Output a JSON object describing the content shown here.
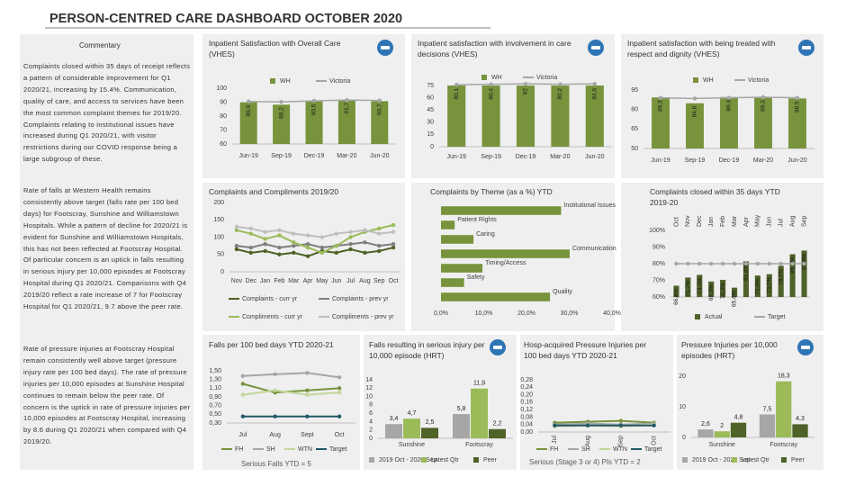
{
  "title": "PERSON-CENTRED CARE DASHBOARD OCTOBER 2020",
  "commentary": {
    "heading": "Commentary",
    "paragraphs": [
      "Complaints closed within 35 days of receipt reflects a pattern of considerable improvement for Q1 2020/21, increasing by 15.4%. Communication, quality of care, and access to services have been the most common complaint themes for 2019/20. Complaints relating to institutional issues have increased during Q1 2020/21, with visitor restrictions during our COVID response being a large subgroup of these.",
      "Rate of falls at Western Health remains consistently above target (falls rate per 100 bed days) for Footscray, Sunshine and Williamstown Hospitals. While a pattern of decline for 2020/21 is evident for Sunshine and Williamstown Hospitals, this has not been reflected at Footscray Hospital. Of particular concern is an uptick in falls resulting in serious injury per 10,000 episodes at Footscray Hospital during Q1 2020/21. Comparisons with Q4 2019/20 reflect a rate increase of 7 for Footscray Hospital for Q1 2020/21, 9.7 above the peer rate.",
      "Rate of pressure injuries at Footscray Hospital remain consistently well above target (pressure injury rate per 100 bed days). The rate of pressure injuries per 10,000 episodes at Sunshine Hospital continues to remain below the peer rate. Of concern is the uptick in rate of pressure injuries per 10,000 episodes at Footscray Hospital, increasing by 8.6 during Q1 2020/21 when compared with Q4 2019/20."
    ]
  },
  "chart_data": [
    {
      "type": "bar",
      "title": "Inpatient Satisfaction with Overall Care (VHES)",
      "categories": [
        "Jun-19",
        "Sep-19",
        "Dec-19",
        "Mar-20",
        "Jun-20"
      ],
      "series": [
        {
          "name": "WH",
          "type": "bar",
          "color": "#77933c",
          "values": [
            89.9,
            88.2,
            90.5,
            91.7,
            90.7
          ],
          "value_labels": [
            "89,9",
            "88,2",
            "90,5",
            "91,7",
            "90,7"
          ]
        },
        {
          "name": "Victoria",
          "type": "line",
          "color": "#a6a6a6",
          "values": [
            90.5,
            90.2,
            91,
            91.5,
            91.2
          ]
        }
      ],
      "ylim": [
        60,
        100
      ],
      "yticks": [
        60,
        70,
        80,
        90,
        100
      ],
      "grid": false,
      "legend": "top"
    },
    {
      "type": "bar",
      "title": "Inpatient satisfaction with involvement in care decisions (VHES)",
      "categories": [
        "Jun-19",
        "Sep-19",
        "Dec-19",
        "Mar-20",
        "Jun-20"
      ],
      "series": [
        {
          "name": "WH",
          "type": "bar",
          "color": "#77933c",
          "values": [
            80.1,
            80.4,
            82,
            80.2,
            84.6
          ],
          "value_labels": [
            "80,1",
            "80,4",
            "82",
            "80,2",
            "84,6"
          ]
        },
        {
          "name": "Victoria",
          "type": "line",
          "color": "#a6a6a6",
          "values": [
            76,
            76.5,
            77,
            76.5,
            77
          ]
        }
      ],
      "ylim": [
        0,
        75
      ],
      "yticks": [
        0,
        15,
        30,
        45,
        60,
        75
      ],
      "grid": false,
      "legend": "top"
    },
    {
      "type": "bar",
      "title": "Inpatient satisfaction with being treated with respect and dignity (VHES)",
      "categories": [
        "Jun-19",
        "Sep-19",
        "Dec-19",
        "Mar-20",
        "Jun-20"
      ],
      "series": [
        {
          "name": "WH",
          "type": "bar",
          "color": "#77933c",
          "values": [
            89.3,
            84.8,
            89.6,
            89.3,
            88.5
          ],
          "value_labels": [
            "89,3",
            "84,8",
            "89,6",
            "89,3",
            "88,5"
          ]
        },
        {
          "name": "Victoria",
          "type": "line",
          "color": "#a6a6a6",
          "values": [
            89,
            88.5,
            89,
            89.5,
            89
          ]
        }
      ],
      "ylim": [
        50,
        95
      ],
      "yticks": [
        50,
        65,
        80,
        95
      ],
      "grid": false,
      "legend": "top"
    },
    {
      "type": "line",
      "title": "Complaints and Compliments 2019/20",
      "categories": [
        "Nov",
        "Dec",
        "Jan",
        "Feb",
        "Mar",
        "Apr",
        "May",
        "Jun",
        "Jul",
        "Aug",
        "Sep",
        "Oct"
      ],
      "series": [
        {
          "name": "Complaints - curr yr",
          "color": "#4f6228",
          "values": [
            65,
            55,
            60,
            50,
            55,
            45,
            60,
            55,
            65,
            55,
            60,
            70
          ]
        },
        {
          "name": "Complaints - prev yr",
          "color": "#7f7f7f",
          "values": [
            75,
            70,
            80,
            70,
            75,
            80,
            70,
            75,
            80,
            85,
            75,
            80
          ]
        },
        {
          "name": "Compliments - curr yr",
          "color": "#9bbb59",
          "values": [
            120,
            110,
            95,
            105,
            85,
            70,
            55,
            75,
            100,
            115,
            125,
            135
          ]
        },
        {
          "name": "Compliments - prev yr",
          "color": "#bfbfbf",
          "values": [
            130,
            125,
            115,
            120,
            110,
            105,
            100,
            110,
            115,
            120,
            110,
            115
          ]
        }
      ],
      "ylim": [
        0,
        200
      ],
      "yticks": [
        0,
        50,
        100,
        150,
        200
      ],
      "grid": false,
      "legend": "bottom"
    },
    {
      "type": "hbar",
      "title": "Complaints by Theme (as a %) YTD",
      "categories": [
        "Institutional Issues",
        "Patient Rights",
        "Caring",
        "Communication",
        "Timing/Access",
        "Safety",
        "Quality"
      ],
      "values": [
        28.1,
        3.2,
        7.6,
        30.1,
        9.7,
        5.4,
        25.5
      ],
      "color": "#77933c",
      "xlim": [
        0,
        40
      ],
      "xticks": [
        {
          "value": 0,
          "label": "0,0%"
        },
        {
          "value": 10,
          "label": "10,0%"
        },
        {
          "value": 20,
          "label": "20,0%"
        },
        {
          "value": 30,
          "label": "30,0%"
        },
        {
          "value": 40,
          "label": "40,0%"
        }
      ]
    },
    {
      "type": "bar",
      "title": "Complaints closed within 35 days YTD 2019-20",
      "categories": [
        "Oct",
        "Nov",
        "Dec",
        "Jan",
        "Feb",
        "Mar",
        "Apr",
        "May",
        "Jun",
        "Jul",
        "Aug",
        "Sep"
      ],
      "series": [
        {
          "name": "Actual",
          "type": "bar",
          "color": "#4f6228",
          "values": [
            66.8,
            71.7,
            73.3,
            69.3,
            70.3,
            65.6,
            81.4,
            72.9,
            73.7,
            78.7,
            85.7,
            87.9
          ],
          "value_labels": [
            "66,8%",
            "71,7%",
            "73,3%",
            "69,3%",
            "70,3%",
            "65,6%",
            "81,4%",
            "72,9%",
            "73,7%",
            "78,7%",
            "85,7%",
            "87,9%"
          ]
        },
        {
          "name": "Target",
          "type": "line",
          "color": "#a6a6a6",
          "values": [
            80,
            80,
            80,
            80,
            80,
            80,
            80,
            80,
            80,
            80,
            80,
            80
          ]
        }
      ],
      "ylim": [
        60,
        100
      ],
      "yticks": [
        {
          "value": 60,
          "label": "60%"
        },
        {
          "value": 70,
          "label": "70%"
        },
        {
          "value": 80,
          "label": "80%"
        },
        {
          "value": 90,
          "label": "90%"
        },
        {
          "value": 100,
          "label": "100%"
        }
      ],
      "grid": false,
      "legend": "bottom"
    },
    {
      "type": "line",
      "title": "Falls per 100 bed days YTD 2020-21",
      "subtitle": "Serious Falls YTD = 5",
      "categories": [
        "Jul",
        "Aug",
        "Sept",
        "Oct"
      ],
      "series": [
        {
          "name": "FH",
          "color": "#77933c",
          "values": [
            1.2,
            1.0,
            1.05,
            1.1
          ]
        },
        {
          "name": "SH",
          "color": "#a6a6a6",
          "values": [
            1.38,
            1.42,
            1.45,
            1.35
          ]
        },
        {
          "name": "WTN",
          "color": "#c3d69b",
          "values": [
            0.95,
            1.05,
            0.95,
            1.0
          ]
        },
        {
          "name": "Target",
          "color": "#215968",
          "values": [
            0.45,
            0.45,
            0.45,
            0.45
          ]
        }
      ],
      "ylim": [
        0.3,
        1.5
      ],
      "yticks": [
        {
          "value": 0.3,
          "label": "0,30"
        },
        {
          "value": 0.5,
          "label": "0,50"
        },
        {
          "value": 0.7,
          "label": "0,70"
        },
        {
          "value": 0.9,
          "label": "0,90"
        },
        {
          "value": 1.1,
          "label": "1,10"
        },
        {
          "value": 1.3,
          "label": "1,30"
        },
        {
          "value": 1.5,
          "label": "1,50"
        }
      ],
      "grid": false,
      "legend": "bottom"
    },
    {
      "type": "grouped-bar",
      "title": "Falls resulting in serious injury per 10,000 episode (HRT)",
      "categories": [
        "Sunshine",
        "Footscray"
      ],
      "series": [
        {
          "name": "2019 Oct - 2020 Sep",
          "color": "#a6a6a6",
          "values": [
            3.4,
            5.8
          ],
          "value_labels": [
            "3,4",
            "5,8"
          ]
        },
        {
          "name": "Latest Qtr",
          "color": "#9bbb59",
          "values": [
            4.7,
            11.9
          ],
          "value_labels": [
            "4,7",
            "11,9"
          ]
        },
        {
          "name": "Peer",
          "color": "#4f6228",
          "values": [
            2.5,
            2.2
          ],
          "value_labels": [
            "2,5",
            "2,2"
          ]
        }
      ],
      "ylim": [
        0,
        14
      ],
      "yticks": [
        0,
        2,
        4,
        6,
        8,
        10,
        12,
        14
      ],
      "grid": false,
      "legend": "bottom"
    },
    {
      "type": "line",
      "title": "Hosp-acquired Pressure Injuries per 100 bed days YTD 2020-21",
      "subtitle": "Serious (Stage 3 or 4) PIs YTD = 2",
      "categories": [
        "Jul",
        "Aug",
        "Sep",
        "Oct"
      ],
      "series": [
        {
          "name": "FH",
          "color": "#77933c",
          "values": [
            0.05,
            0.055,
            0.06,
            0.05
          ]
        },
        {
          "name": "SH",
          "color": "#a6a6a6",
          "values": [
            0.04,
            0.045,
            0.04,
            0.045
          ]
        },
        {
          "name": "WTN",
          "color": "#c3d69b",
          "values": [
            0.03,
            0.035,
            0.03,
            0.04
          ]
        },
        {
          "name": "Target",
          "color": "#215968",
          "values": [
            0.035,
            0.035,
            0.035,
            0.035
          ]
        }
      ],
      "ylim": [
        0,
        0.28
      ],
      "yticks": [
        {
          "value": 0,
          "label": "0,00"
        },
        {
          "value": 0.04,
          "label": "0,04"
        },
        {
          "value": 0.08,
          "label": "0,08"
        },
        {
          "value": 0.12,
          "label": "0,12"
        },
        {
          "value": 0.16,
          "label": "0,16"
        },
        {
          "value": 0.2,
          "label": "0,20"
        },
        {
          "value": 0.24,
          "label": "0,24"
        },
        {
          "value": 0.28,
          "label": "0,28"
        }
      ],
      "grid": false,
      "legend": "bottom"
    },
    {
      "type": "grouped-bar",
      "title": "Pressure Injuries per 10,000 episodes (HRT)",
      "categories": [
        "Sunshine",
        "Footscray"
      ],
      "series": [
        {
          "name": "2019 Oct - 2020 Sep",
          "color": "#a6a6a6",
          "values": [
            2.6,
            7.5
          ],
          "value_labels": [
            "2,6",
            "7,5"
          ]
        },
        {
          "name": "Latest Qtr",
          "color": "#9bbb59",
          "values": [
            2,
            18.3
          ],
          "value_labels": [
            "2",
            "18,3"
          ]
        },
        {
          "name": "Peer",
          "color": "#4f6228",
          "values": [
            4.8,
            4.3
          ],
          "value_labels": [
            "4,8",
            "4,3"
          ]
        }
      ],
      "ylim": [
        0,
        20
      ],
      "yticks": [
        0,
        10,
        20
      ],
      "grid": false,
      "legend": "bottom"
    }
  ]
}
